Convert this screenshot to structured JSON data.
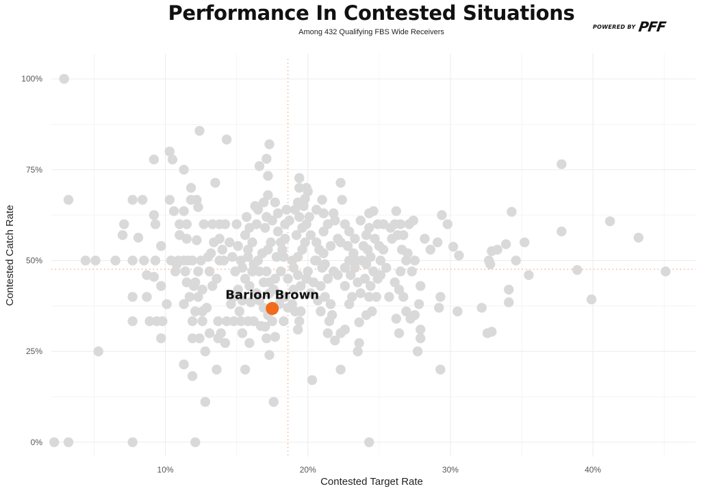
{
  "header": {
    "title": "Performance In Contested Situations",
    "subtitle": "Among 432 Qualifying FBS Wide Receivers",
    "brand_prefix": "POWERED BY",
    "brand_logo": "PFF"
  },
  "chart_data": {
    "type": "scatter",
    "title": "Performance In Contested Situations",
    "subtitle": "Among 432 Qualifying FBS Wide Receivers",
    "xlabel": "Contested Target Rate",
    "ylabel": "Contested Catch Rate",
    "xlim": [
      2,
      47.2
    ],
    "ylim": [
      -4,
      107
    ],
    "x_ticks": [
      {
        "v": 10,
        "label": "10%"
      },
      {
        "v": 20,
        "label": "20%"
      },
      {
        "v": 30,
        "label": "30%"
      },
      {
        "v": 40,
        "label": "40%"
      }
    ],
    "y_ticks": [
      {
        "v": 0,
        "label": "0%"
      },
      {
        "v": 25,
        "label": "25%"
      },
      {
        "v": 50,
        "label": "50%"
      },
      {
        "v": 75,
        "label": "75%"
      },
      {
        "v": 100,
        "label": "100%"
      }
    ],
    "grid": true,
    "reference_lines": {
      "x": 18.6,
      "y": 47.6
    },
    "colors": {
      "points": "#d9d9d9",
      "highlight": "#f26a1b",
      "reference": "#f0b48a",
      "grid": "#ebebeb"
    },
    "highlight": {
      "label": "Barion Brown",
      "x": 17.5,
      "y": 36.8
    },
    "points": [
      [
        2.9,
        100
      ],
      [
        3.2,
        66.7
      ],
      [
        2.2,
        0
      ],
      [
        3.2,
        0
      ],
      [
        7.7,
        0
      ],
      [
        12.1,
        0
      ],
      [
        24.3,
        0
      ],
      [
        4.4,
        50
      ],
      [
        5.1,
        50
      ],
      [
        6.5,
        50
      ],
      [
        5.3,
        25
      ],
      [
        7.1,
        60
      ],
      [
        7.0,
        57
      ],
      [
        7.7,
        66.7
      ],
      [
        8.4,
        66.7
      ],
      [
        8.1,
        56.3
      ],
      [
        7.7,
        50
      ],
      [
        8.5,
        50
      ],
      [
        7.7,
        40
      ],
      [
        7.7,
        33.3
      ],
      [
        8.7,
        40
      ],
      [
        8.7,
        46
      ],
      [
        9.2,
        45.5
      ],
      [
        8.9,
        33.3
      ],
      [
        9.4,
        33.3
      ],
      [
        9.8,
        33.3
      ],
      [
        9.7,
        28.6
      ],
      [
        9.7,
        43
      ],
      [
        9.7,
        54
      ],
      [
        9.2,
        62.5
      ],
      [
        9.3,
        60
      ],
      [
        9.2,
        77.8
      ],
      [
        10.3,
        80
      ],
      [
        10.5,
        77.8
      ],
      [
        10.3,
        66.7
      ],
      [
        10.6,
        63.6
      ],
      [
        11.3,
        75
      ],
      [
        11.8,
        70
      ],
      [
        11.3,
        63.6
      ],
      [
        11.0,
        60
      ],
      [
        11.5,
        60
      ],
      [
        11.8,
        66.7
      ],
      [
        12.3,
        64.7
      ],
      [
        12.4,
        85.7
      ],
      [
        12.2,
        66.7
      ],
      [
        12.7,
        60
      ],
      [
        12.2,
        55.6
      ],
      [
        11.5,
        56
      ],
      [
        11.0,
        57
      ],
      [
        10.9,
        50
      ],
      [
        11.3,
        50
      ],
      [
        11.6,
        50
      ],
      [
        11.9,
        50
      ],
      [
        12.3,
        47
      ],
      [
        11.4,
        47
      ],
      [
        10.7,
        47
      ],
      [
        11.5,
        44
      ],
      [
        12.1,
        44
      ],
      [
        12.6,
        42
      ],
      [
        11.7,
        40
      ],
      [
        12.3,
        40
      ],
      [
        11.3,
        38
      ],
      [
        12.1,
        36
      ],
      [
        12.6,
        36
      ],
      [
        11.9,
        33.3
      ],
      [
        12.6,
        33.3
      ],
      [
        11.9,
        28.6
      ],
      [
        12.4,
        28.6
      ],
      [
        11.3,
        21.4
      ],
      [
        11.9,
        18.2
      ],
      [
        12.8,
        11.1
      ],
      [
        12.8,
        25
      ],
      [
        13.1,
        30
      ],
      [
        13.7,
        33.3
      ],
      [
        13.9,
        30
      ],
      [
        14.3,
        33.3
      ],
      [
        14.8,
        33.3
      ],
      [
        13.7,
        28.6
      ],
      [
        14.2,
        27.3
      ],
      [
        13.6,
        20
      ],
      [
        12.9,
        37
      ],
      [
        13.3,
        43
      ],
      [
        13.6,
        45
      ],
      [
        13.1,
        47
      ],
      [
        13.8,
        50
      ],
      [
        14.1,
        50
      ],
      [
        13.4,
        55
      ],
      [
        13.8,
        56
      ],
      [
        14.2,
        60
      ],
      [
        13.8,
        60
      ],
      [
        13.3,
        60
      ],
      [
        13.5,
        71.4
      ],
      [
        14.3,
        83.3
      ],
      [
        15.1,
        54
      ],
      [
        14.7,
        51
      ],
      [
        15.3,
        50
      ],
      [
        15.8,
        51
      ],
      [
        15.8,
        53
      ],
      [
        15.4,
        48
      ],
      [
        16.1,
        47
      ],
      [
        16.6,
        47
      ],
      [
        16.2,
        49
      ],
      [
        15.6,
        45
      ],
      [
        15.1,
        42
      ],
      [
        14.8,
        40
      ],
      [
        15.4,
        39
      ],
      [
        16.0,
        38.5
      ],
      [
        15.3,
        33.3
      ],
      [
        15.8,
        33.3
      ],
      [
        16.2,
        33.3
      ],
      [
        15.4,
        30
      ],
      [
        15.9,
        27.3
      ],
      [
        15.6,
        20
      ],
      [
        16.7,
        32
      ],
      [
        17.0,
        31.8
      ],
      [
        17.5,
        33.3
      ],
      [
        17.1,
        28.6
      ],
      [
        17.3,
        24
      ],
      [
        17.6,
        11.1
      ],
      [
        17.7,
        29
      ],
      [
        17.2,
        35
      ],
      [
        16.9,
        37
      ],
      [
        16.6,
        39
      ],
      [
        17.3,
        41
      ],
      [
        17.6,
        42
      ],
      [
        17.3,
        44
      ],
      [
        17.7,
        45
      ],
      [
        17.1,
        47
      ],
      [
        16.5,
        50
      ],
      [
        16.8,
        52
      ],
      [
        17.2,
        53
      ],
      [
        16.1,
        55
      ],
      [
        15.6,
        57
      ],
      [
        15.9,
        59
      ],
      [
        16.4,
        60
      ],
      [
        17.0,
        59
      ],
      [
        17.4,
        55
      ],
      [
        17.8,
        51
      ],
      [
        18.3,
        51
      ],
      [
        18.2,
        53
      ],
      [
        18.4,
        56
      ],
      [
        17.9,
        58
      ],
      [
        17.5,
        61
      ],
      [
        17.1,
        62
      ],
      [
        16.5,
        64
      ],
      [
        16.9,
        66
      ],
      [
        17.2,
        68
      ],
      [
        17.7,
        66
      ],
      [
        16.6,
        76
      ],
      [
        17.1,
        78
      ],
      [
        17.3,
        82
      ],
      [
        17.2,
        73.3
      ],
      [
        17.9,
        63
      ],
      [
        18.4,
        60
      ],
      [
        18.1,
        47
      ],
      [
        18.6,
        45
      ],
      [
        18.4,
        40
      ],
      [
        18.0,
        38
      ],
      [
        18.3,
        33.3
      ],
      [
        18.6,
        37
      ],
      [
        19.1,
        36
      ],
      [
        19.5,
        36
      ],
      [
        19.4,
        33.3
      ],
      [
        19.3,
        31
      ],
      [
        20.3,
        17.1
      ],
      [
        19.0,
        42
      ],
      [
        19.5,
        43
      ],
      [
        19.9,
        45
      ],
      [
        19.3,
        46
      ],
      [
        19.0,
        48
      ],
      [
        18.9,
        50
      ],
      [
        19.3,
        51
      ],
      [
        19.6,
        53
      ],
      [
        19.8,
        55
      ],
      [
        19.2,
        57
      ],
      [
        19.6,
        59
      ],
      [
        19.9,
        60
      ],
      [
        19.4,
        62
      ],
      [
        19.1,
        64
      ],
      [
        19.7,
        65
      ],
      [
        19.3,
        66
      ],
      [
        19.8,
        67
      ],
      [
        20.0,
        69
      ],
      [
        19.4,
        70
      ],
      [
        19.4,
        72.7
      ],
      [
        19.9,
        70
      ],
      [
        20.5,
        50
      ],
      [
        20.8,
        53
      ],
      [
        20.6,
        55
      ],
      [
        20.2,
        57
      ],
      [
        21.1,
        58
      ],
      [
        21.4,
        60
      ],
      [
        21.1,
        63
      ],
      [
        21.8,
        63
      ],
      [
        21.0,
        66.7
      ],
      [
        22.4,
        66.7
      ],
      [
        22.3,
        71.4
      ],
      [
        21.9,
        61
      ],
      [
        22.6,
        60
      ],
      [
        22.9,
        58
      ],
      [
        22.3,
        55
      ],
      [
        21.6,
        54
      ],
      [
        21.1,
        52
      ],
      [
        20.6,
        50
      ],
      [
        21.2,
        49
      ],
      [
        21.8,
        47
      ],
      [
        21.4,
        45
      ],
      [
        20.9,
        43
      ],
      [
        20.4,
        44
      ],
      [
        20.2,
        41
      ],
      [
        21.2,
        40
      ],
      [
        21.6,
        38
      ],
      [
        20.9,
        36
      ],
      [
        21.5,
        33.3
      ],
      [
        21.4,
        30
      ],
      [
        21.9,
        28
      ],
      [
        22.3,
        30
      ],
      [
        22.6,
        31
      ],
      [
        22.3,
        20
      ],
      [
        22.9,
        38
      ],
      [
        23.1,
        40
      ],
      [
        23.7,
        41
      ],
      [
        23.5,
        44
      ],
      [
        23.0,
        46
      ],
      [
        22.6,
        48
      ],
      [
        22.9,
        50
      ],
      [
        23.4,
        50
      ],
      [
        23.8,
        50
      ],
      [
        23.2,
        52
      ],
      [
        22.8,
        54
      ],
      [
        23.3,
        56
      ],
      [
        23.9,
        54
      ],
      [
        24.2,
        53
      ],
      [
        24.4,
        51
      ],
      [
        24.1,
        49
      ],
      [
        24.6,
        47
      ],
      [
        24.0,
        45
      ],
      [
        24.4,
        43
      ],
      [
        24.9,
        45
      ],
      [
        24.3,
        40
      ],
      [
        24.8,
        40
      ],
      [
        24.5,
        36
      ],
      [
        24.1,
        35
      ],
      [
        23.6,
        27.3
      ],
      [
        23.5,
        25
      ],
      [
        24.1,
        57
      ],
      [
        24.7,
        56
      ],
      [
        24.3,
        59
      ],
      [
        24.9,
        60
      ],
      [
        25.3,
        60
      ],
      [
        23.7,
        61
      ],
      [
        24.3,
        63
      ],
      [
        24.6,
        63.6
      ],
      [
        25.3,
        53
      ],
      [
        25.1,
        50
      ],
      [
        25.5,
        48
      ],
      [
        25.1,
        46
      ],
      [
        26.1,
        44
      ],
      [
        26.5,
        47
      ],
      [
        26.4,
        42
      ],
      [
        26.7,
        40
      ],
      [
        26.9,
        36
      ],
      [
        26.2,
        34
      ],
      [
        26.4,
        30
      ],
      [
        27.2,
        34
      ],
      [
        27.5,
        35
      ],
      [
        27.8,
        38
      ],
      [
        27.9,
        43
      ],
      [
        27.3,
        47
      ],
      [
        27.5,
        50
      ],
      [
        27.0,
        52
      ],
      [
        26.6,
        53
      ],
      [
        26.3,
        57
      ],
      [
        26.5,
        60
      ],
      [
        26.1,
        60
      ],
      [
        25.8,
        59
      ],
      [
        25.9,
        56
      ],
      [
        26.7,
        57
      ],
      [
        27.1,
        60
      ],
      [
        27.4,
        61
      ],
      [
        26.2,
        63.6
      ],
      [
        27.9,
        31
      ],
      [
        27.9,
        28.6
      ],
      [
        27.7,
        25
      ],
      [
        28.2,
        56
      ],
      [
        28.6,
        53
      ],
      [
        29.3,
        40
      ],
      [
        29.2,
        37
      ],
      [
        29.3,
        20
      ],
      [
        29.1,
        55
      ],
      [
        29.4,
        62.5
      ],
      [
        29.8,
        60
      ],
      [
        30.2,
        53.8
      ],
      [
        30.6,
        51.4
      ],
      [
        30.5,
        36
      ],
      [
        32.2,
        37
      ],
      [
        32.6,
        30
      ],
      [
        32.9,
        30.4
      ],
      [
        32.7,
        50
      ],
      [
        32.8,
        49
      ],
      [
        32.9,
        52.6
      ],
      [
        33.3,
        53
      ],
      [
        33.9,
        54.5
      ],
      [
        34.1,
        42
      ],
      [
        34.1,
        38.5
      ],
      [
        34.6,
        50
      ],
      [
        34.3,
        63.4
      ],
      [
        35.2,
        55
      ],
      [
        35.5,
        46
      ],
      [
        37.8,
        76.5
      ],
      [
        37.8,
        58
      ],
      [
        38.9,
        47.4
      ],
      [
        39.9,
        39.3
      ],
      [
        41.2,
        60.8
      ],
      [
        43.2,
        56.3
      ],
      [
        45.1,
        47
      ],
      [
        12.5,
        50
      ],
      [
        13.0,
        51
      ],
      [
        14.0,
        53
      ],
      [
        14.5,
        55
      ],
      [
        13.2,
        52
      ],
      [
        15.0,
        60
      ],
      [
        15.7,
        62
      ],
      [
        16.3,
        65
      ],
      [
        18.7,
        61
      ],
      [
        18.5,
        64
      ],
      [
        20.1,
        62
      ],
      [
        20.6,
        64
      ],
      [
        14.9,
        47
      ],
      [
        15.9,
        43
      ],
      [
        16.4,
        41
      ],
      [
        18.9,
        38
      ],
      [
        21.7,
        35
      ],
      [
        22.1,
        56
      ],
      [
        20.0,
        47
      ],
      [
        21.0,
        48
      ],
      [
        22.1,
        46
      ],
      [
        23.3,
        48
      ],
      [
        25.7,
        40
      ],
      [
        26.9,
        50
      ],
      [
        25.0,
        54
      ],
      [
        10.4,
        50
      ],
      [
        10.1,
        38
      ],
      [
        9.3,
        50
      ],
      [
        10.8,
        49
      ],
      [
        14.6,
        38
      ],
      [
        15.2,
        36
      ],
      [
        16.9,
        44
      ],
      [
        20.7,
        39
      ],
      [
        22.6,
        43
      ],
      [
        23.6,
        33
      ],
      [
        23.0,
        50
      ],
      [
        18.1,
        55
      ],
      [
        12.0,
        43
      ]
    ]
  }
}
